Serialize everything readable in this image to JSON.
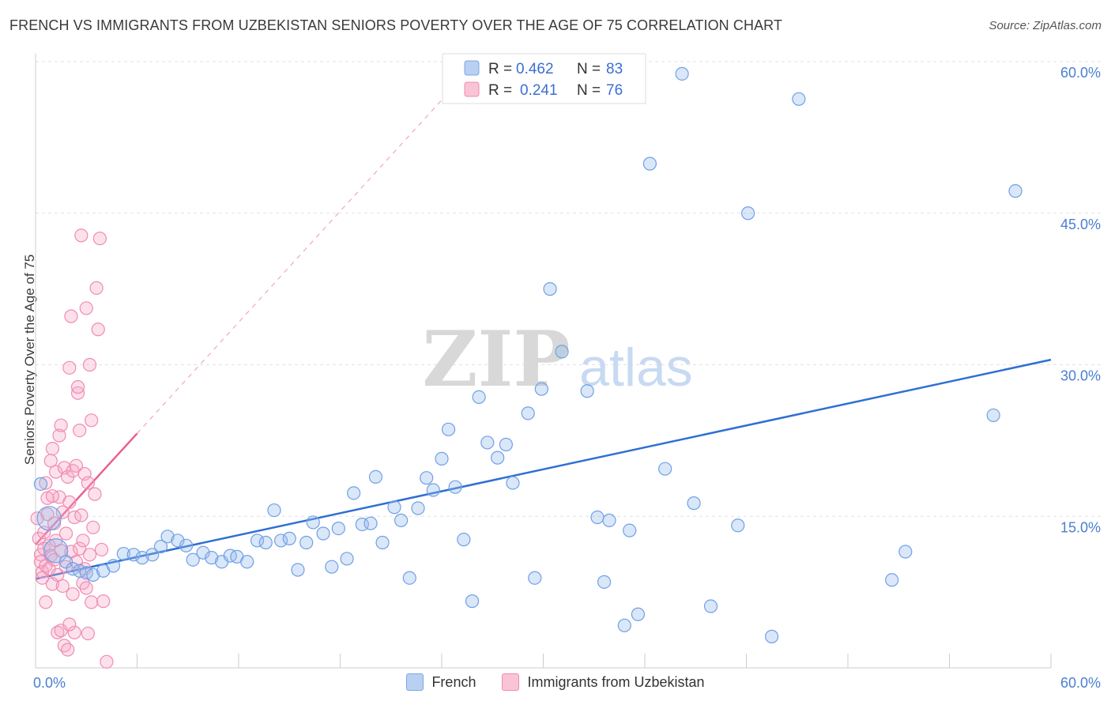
{
  "title": "FRENCH VS IMMIGRANTS FROM UZBEKISTAN SENIORS POVERTY OVER THE AGE OF 75 CORRELATION CHART",
  "source": "Source: ZipAtlas.com",
  "watermark": {
    "zip": "ZIP",
    "atlas": "atlas"
  },
  "colors": {
    "french": "#6fa0e6",
    "french_line": "#2f6fd3",
    "uzbek": "#f08bb0",
    "uzbek_line": "#e8608f"
  },
  "legend": {
    "french": {
      "r_label": "R = ",
      "r": "0.462",
      "n_label": "N = ",
      "n": "83"
    },
    "uzbek": {
      "r_label": "R = ",
      "r": "0.241",
      "n_label": "N = ",
      "n": "76"
    }
  },
  "bottom_legend": {
    "french": "French",
    "uzbek": "Immigrants from Uzbekistan"
  },
  "chart_data": {
    "type": "scatter",
    "title": "FRENCH VS IMMIGRANTS FROM UZBEKISTAN SENIORS POVERTY OVER THE AGE OF 75 CORRELATION CHART",
    "xlabel": "",
    "ylabel": "Seniors Poverty Over the Age of 75",
    "xlim": [
      0,
      60
    ],
    "ylim": [
      0,
      60
    ],
    "x_tick_labels": [
      "0.0%",
      "60.0%"
    ],
    "y_ticks": [
      15,
      30,
      45,
      60
    ],
    "y_tick_labels": [
      "15.0%",
      "30.0%",
      "45.0%",
      "60.0%"
    ],
    "grid": true,
    "legend_position": "top-center",
    "series": [
      {
        "name": "French",
        "r": 0.462,
        "n": 83,
        "trend": [
          [
            0,
            8.8
          ],
          [
            60,
            30.5
          ]
        ],
        "points": [
          [
            0.3,
            18.2
          ],
          [
            0.8,
            14.8
          ],
          [
            1.2,
            11.6
          ],
          [
            1.8,
            10.5
          ],
          [
            2.2,
            9.8
          ],
          [
            2.6,
            9.6
          ],
          [
            3.0,
            9.4
          ],
          [
            3.4,
            9.2
          ],
          [
            4.0,
            9.6
          ],
          [
            4.6,
            10.1
          ],
          [
            5.2,
            11.3
          ],
          [
            5.8,
            11.2
          ],
          [
            6.3,
            10.9
          ],
          [
            6.9,
            11.2
          ],
          [
            7.4,
            12.0
          ],
          [
            7.8,
            13.0
          ],
          [
            8.4,
            12.6
          ],
          [
            8.9,
            12.1
          ],
          [
            9.3,
            10.7
          ],
          [
            9.9,
            11.4
          ],
          [
            10.4,
            10.9
          ],
          [
            11.0,
            10.5
          ],
          [
            11.5,
            11.1
          ],
          [
            11.9,
            11.0
          ],
          [
            12.5,
            10.5
          ],
          [
            13.1,
            12.6
          ],
          [
            13.6,
            12.4
          ],
          [
            14.1,
            15.6
          ],
          [
            14.5,
            12.6
          ],
          [
            15.0,
            12.8
          ],
          [
            15.5,
            9.7
          ],
          [
            16.0,
            12.4
          ],
          [
            16.4,
            14.4
          ],
          [
            17.0,
            13.3
          ],
          [
            17.5,
            10.0
          ],
          [
            17.9,
            13.8
          ],
          [
            18.4,
            10.8
          ],
          [
            18.8,
            17.3
          ],
          [
            19.3,
            14.2
          ],
          [
            19.8,
            14.3
          ],
          [
            20.1,
            18.9
          ],
          [
            20.5,
            12.4
          ],
          [
            21.2,
            15.9
          ],
          [
            21.6,
            14.6
          ],
          [
            22.1,
            8.9
          ],
          [
            22.6,
            15.8
          ],
          [
            23.1,
            18.8
          ],
          [
            23.5,
            17.6
          ],
          [
            24.0,
            20.7
          ],
          [
            24.4,
            23.6
          ],
          [
            24.8,
            17.9
          ],
          [
            25.3,
            12.7
          ],
          [
            25.8,
            6.6
          ],
          [
            26.2,
            26.8
          ],
          [
            26.7,
            22.3
          ],
          [
            27.3,
            20.8
          ],
          [
            27.8,
            22.1
          ],
          [
            28.2,
            18.3
          ],
          [
            29.1,
            25.2
          ],
          [
            29.5,
            8.9
          ],
          [
            29.9,
            27.6
          ],
          [
            30.4,
            37.5
          ],
          [
            31.1,
            31.3
          ],
          [
            32.6,
            27.4
          ],
          [
            33.2,
            14.9
          ],
          [
            33.6,
            8.5
          ],
          [
            33.9,
            14.6
          ],
          [
            34.8,
            4.2
          ],
          [
            35.1,
            13.6
          ],
          [
            35.6,
            5.3
          ],
          [
            36.3,
            49.9
          ],
          [
            37.2,
            19.7
          ],
          [
            38.2,
            58.8
          ],
          [
            38.9,
            16.3
          ],
          [
            39.9,
            6.1
          ],
          [
            41.5,
            14.1
          ],
          [
            42.1,
            45.0
          ],
          [
            43.5,
            3.1
          ],
          [
            45.1,
            56.3
          ],
          [
            50.6,
            8.7
          ],
          [
            51.4,
            11.5
          ],
          [
            56.6,
            25.0
          ],
          [
            57.9,
            47.2
          ]
        ]
      },
      {
        "name": "Immigrants from Uzbekistan",
        "r": 0.241,
        "n": 76,
        "trend": [
          [
            0,
            12.2
          ],
          [
            6,
            23.2
          ]
        ],
        "points": [
          [
            0.1,
            14.8
          ],
          [
            0.2,
            12.8
          ],
          [
            0.3,
            11.2
          ],
          [
            0.3,
            10.5
          ],
          [
            0.4,
            9.5
          ],
          [
            0.4,
            8.9
          ],
          [
            0.5,
            13.4
          ],
          [
            0.5,
            11.8
          ],
          [
            0.6,
            10.1
          ],
          [
            0.6,
            18.3
          ],
          [
            0.7,
            16.8
          ],
          [
            0.7,
            15.2
          ],
          [
            0.8,
            12.1
          ],
          [
            0.8,
            9.8
          ],
          [
            0.9,
            20.5
          ],
          [
            0.9,
            11.1
          ],
          [
            1.0,
            8.3
          ],
          [
            1.0,
            21.7
          ],
          [
            1.1,
            14.3
          ],
          [
            1.1,
            10.7
          ],
          [
            1.2,
            19.4
          ],
          [
            1.2,
            12.6
          ],
          [
            1.3,
            3.5
          ],
          [
            1.3,
            9.2
          ],
          [
            1.4,
            23.0
          ],
          [
            1.4,
            16.9
          ],
          [
            1.5,
            11.6
          ],
          [
            1.5,
            3.7
          ],
          [
            1.6,
            15.4
          ],
          [
            1.6,
            8.1
          ],
          [
            1.7,
            19.8
          ],
          [
            1.7,
            2.2
          ],
          [
            1.8,
            13.3
          ],
          [
            1.8,
            10.0
          ],
          [
            1.9,
            18.9
          ],
          [
            1.9,
            1.8
          ],
          [
            2.0,
            29.7
          ],
          [
            2.0,
            16.4
          ],
          [
            2.1,
            34.8
          ],
          [
            2.1,
            11.5
          ],
          [
            2.2,
            7.3
          ],
          [
            2.2,
            19.5
          ],
          [
            2.3,
            3.5
          ],
          [
            2.3,
            14.9
          ],
          [
            2.4,
            20.0
          ],
          [
            2.4,
            10.5
          ],
          [
            2.5,
            27.2
          ],
          [
            2.5,
            27.8
          ],
          [
            2.6,
            23.5
          ],
          [
            2.6,
            11.8
          ],
          [
            2.7,
            42.8
          ],
          [
            2.7,
            15.1
          ],
          [
            2.8,
            8.4
          ],
          [
            2.8,
            12.6
          ],
          [
            2.9,
            19.2
          ],
          [
            2.9,
            9.8
          ],
          [
            3.0,
            35.6
          ],
          [
            3.0,
            7.9
          ],
          [
            3.1,
            3.4
          ],
          [
            3.1,
            18.3
          ],
          [
            3.2,
            30.0
          ],
          [
            3.2,
            11.2
          ],
          [
            3.3,
            24.5
          ],
          [
            3.3,
            6.5
          ],
          [
            3.4,
            13.9
          ],
          [
            3.5,
            17.2
          ],
          [
            3.6,
            37.6
          ],
          [
            3.7,
            33.5
          ],
          [
            3.8,
            42.5
          ],
          [
            3.9,
            11.7
          ],
          [
            4.0,
            6.6
          ],
          [
            4.2,
            0.6
          ],
          [
            1.0,
            17.0
          ],
          [
            1.5,
            24.0
          ],
          [
            2.0,
            4.3
          ],
          [
            0.6,
            6.5
          ]
        ]
      }
    ]
  }
}
